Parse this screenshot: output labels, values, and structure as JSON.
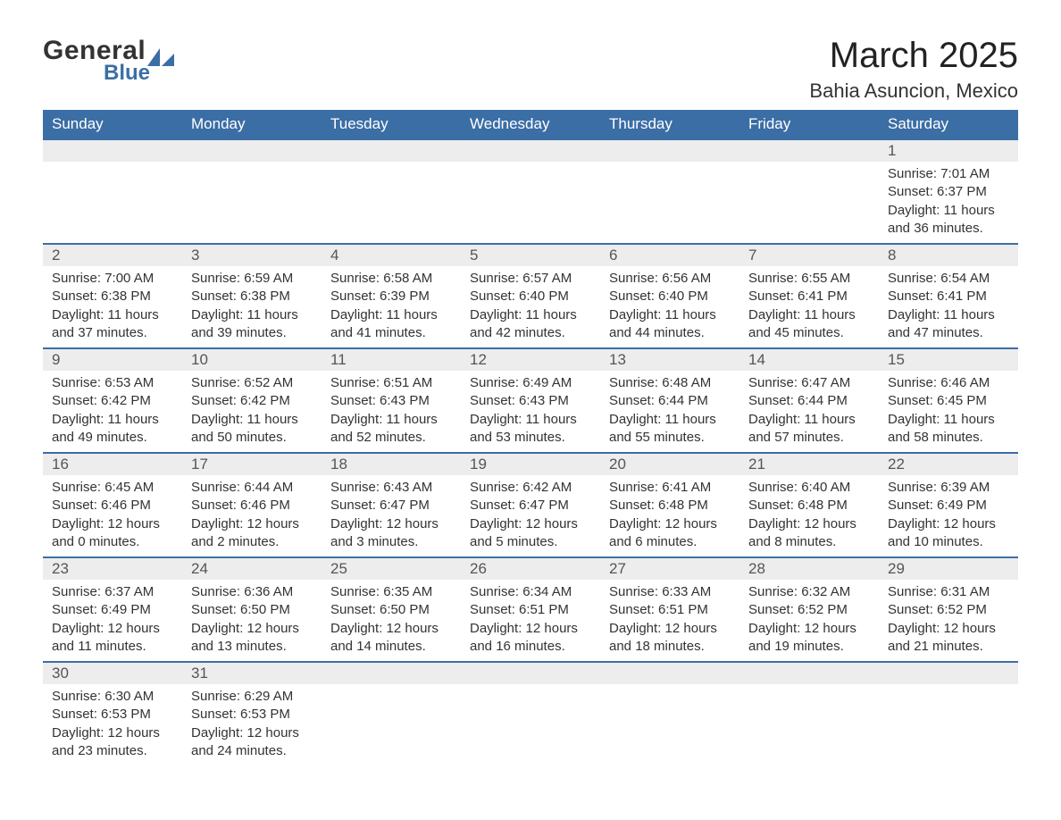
{
  "logo": {
    "general": "General",
    "blue": "Blue",
    "sail_color": "#3b6ea5"
  },
  "header": {
    "month": "March 2025",
    "location": "Bahia Asuncion, Mexico"
  },
  "colors": {
    "header_bg": "#3b6ea5",
    "header_fg": "#ffffff",
    "daynum_bg": "#ededed",
    "row_divider": "#3b6ea5",
    "text": "#333333"
  },
  "weekdays": [
    "Sunday",
    "Monday",
    "Tuesday",
    "Wednesday",
    "Thursday",
    "Friday",
    "Saturday"
  ],
  "weeks": [
    {
      "nums": [
        "",
        "",
        "",
        "",
        "",
        "",
        "1"
      ],
      "cells": [
        "",
        "",
        "",
        "",
        "",
        "",
        "Sunrise: 7:01 AM\nSunset: 6:37 PM\nDaylight: 11 hours and 36 minutes."
      ]
    },
    {
      "nums": [
        "2",
        "3",
        "4",
        "5",
        "6",
        "7",
        "8"
      ],
      "cells": [
        "Sunrise: 7:00 AM\nSunset: 6:38 PM\nDaylight: 11 hours and 37 minutes.",
        "Sunrise: 6:59 AM\nSunset: 6:38 PM\nDaylight: 11 hours and 39 minutes.",
        "Sunrise: 6:58 AM\nSunset: 6:39 PM\nDaylight: 11 hours and 41 minutes.",
        "Sunrise: 6:57 AM\nSunset: 6:40 PM\nDaylight: 11 hours and 42 minutes.",
        "Sunrise: 6:56 AM\nSunset: 6:40 PM\nDaylight: 11 hours and 44 minutes.",
        "Sunrise: 6:55 AM\nSunset: 6:41 PM\nDaylight: 11 hours and 45 minutes.",
        "Sunrise: 6:54 AM\nSunset: 6:41 PM\nDaylight: 11 hours and 47 minutes."
      ]
    },
    {
      "nums": [
        "9",
        "10",
        "11",
        "12",
        "13",
        "14",
        "15"
      ],
      "cells": [
        "Sunrise: 6:53 AM\nSunset: 6:42 PM\nDaylight: 11 hours and 49 minutes.",
        "Sunrise: 6:52 AM\nSunset: 6:42 PM\nDaylight: 11 hours and 50 minutes.",
        "Sunrise: 6:51 AM\nSunset: 6:43 PM\nDaylight: 11 hours and 52 minutes.",
        "Sunrise: 6:49 AM\nSunset: 6:43 PM\nDaylight: 11 hours and 53 minutes.",
        "Sunrise: 6:48 AM\nSunset: 6:44 PM\nDaylight: 11 hours and 55 minutes.",
        "Sunrise: 6:47 AM\nSunset: 6:44 PM\nDaylight: 11 hours and 57 minutes.",
        "Sunrise: 6:46 AM\nSunset: 6:45 PM\nDaylight: 11 hours and 58 minutes."
      ]
    },
    {
      "nums": [
        "16",
        "17",
        "18",
        "19",
        "20",
        "21",
        "22"
      ],
      "cells": [
        "Sunrise: 6:45 AM\nSunset: 6:46 PM\nDaylight: 12 hours and 0 minutes.",
        "Sunrise: 6:44 AM\nSunset: 6:46 PM\nDaylight: 12 hours and 2 minutes.",
        "Sunrise: 6:43 AM\nSunset: 6:47 PM\nDaylight: 12 hours and 3 minutes.",
        "Sunrise: 6:42 AM\nSunset: 6:47 PM\nDaylight: 12 hours and 5 minutes.",
        "Sunrise: 6:41 AM\nSunset: 6:48 PM\nDaylight: 12 hours and 6 minutes.",
        "Sunrise: 6:40 AM\nSunset: 6:48 PM\nDaylight: 12 hours and 8 minutes.",
        "Sunrise: 6:39 AM\nSunset: 6:49 PM\nDaylight: 12 hours and 10 minutes."
      ]
    },
    {
      "nums": [
        "23",
        "24",
        "25",
        "26",
        "27",
        "28",
        "29"
      ],
      "cells": [
        "Sunrise: 6:37 AM\nSunset: 6:49 PM\nDaylight: 12 hours and 11 minutes.",
        "Sunrise: 6:36 AM\nSunset: 6:50 PM\nDaylight: 12 hours and 13 minutes.",
        "Sunrise: 6:35 AM\nSunset: 6:50 PM\nDaylight: 12 hours and 14 minutes.",
        "Sunrise: 6:34 AM\nSunset: 6:51 PM\nDaylight: 12 hours and 16 minutes.",
        "Sunrise: 6:33 AM\nSunset: 6:51 PM\nDaylight: 12 hours and 18 minutes.",
        "Sunrise: 6:32 AM\nSunset: 6:52 PM\nDaylight: 12 hours and 19 minutes.",
        "Sunrise: 6:31 AM\nSunset: 6:52 PM\nDaylight: 12 hours and 21 minutes."
      ]
    },
    {
      "nums": [
        "30",
        "31",
        "",
        "",
        "",
        "",
        ""
      ],
      "cells": [
        "Sunrise: 6:30 AM\nSunset: 6:53 PM\nDaylight: 12 hours and 23 minutes.",
        "Sunrise: 6:29 AM\nSunset: 6:53 PM\nDaylight: 12 hours and 24 minutes.",
        "",
        "",
        "",
        "",
        ""
      ]
    }
  ]
}
